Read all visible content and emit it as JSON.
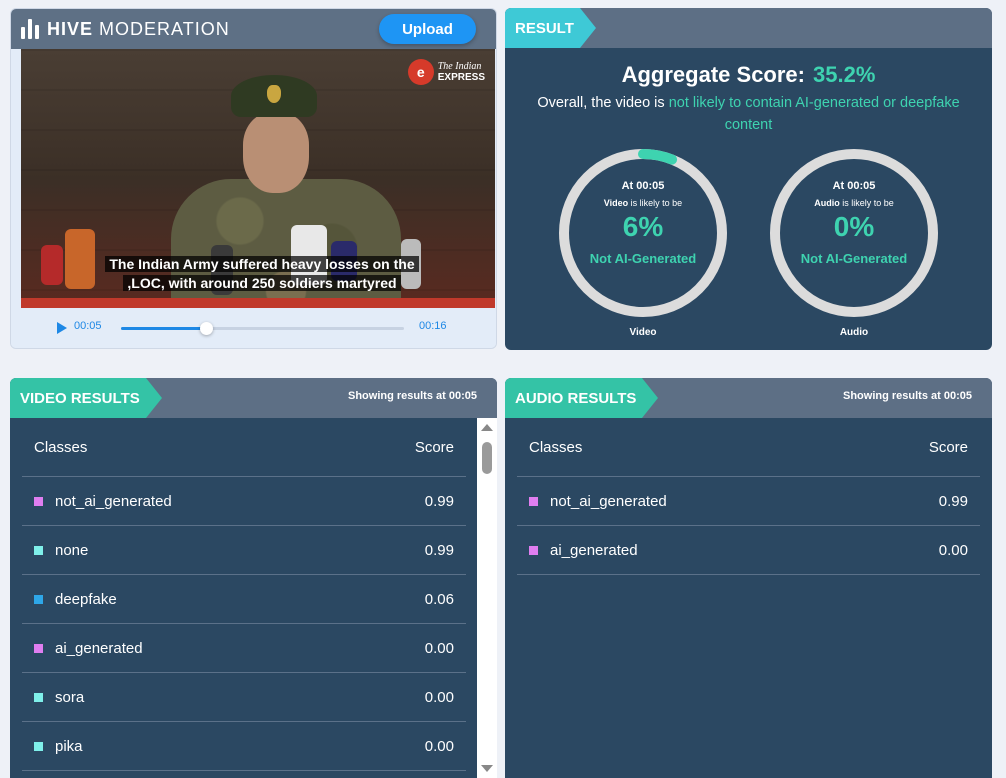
{
  "brand": {
    "name_bold": "HIVE",
    "name_light": "MODERATION",
    "upload_label": "Upload"
  },
  "player": {
    "channel_small": "The Indian",
    "channel_big": "EXPRESS",
    "caption_line1": "The Indian Army suffered heavy losses on the",
    "caption_line2": ",LOC, with around 250 soldiers martyred",
    "current_time": "00:05",
    "total_time": "00:16",
    "progress": 0.3
  },
  "result": {
    "tag": "RESULT",
    "aggregate_label": "Aggregate Score:",
    "aggregate_value": "35.2%",
    "verdict_prefix": "Overall, the video is",
    "verdict_highlight": "not likely to contain AI-generated or deepfake content",
    "gauges": [
      {
        "at": "At 00:05",
        "subject": "Video",
        "likely_suffix": "is likely to be",
        "percent": "6%",
        "fraction": 0.06,
        "label": "Not AI-Generated",
        "caption": "Video"
      },
      {
        "at": "At 00:05",
        "subject": "Audio",
        "likely_suffix": "is likely to be",
        "percent": "0%",
        "fraction": 0.0,
        "label": "Not AI-Generated",
        "caption": "Audio"
      }
    ],
    "colors": {
      "accent": "#3ed3b0",
      "ring": "#dcdcdc"
    }
  },
  "video_results": {
    "tag": "VIDEO RESULTS",
    "showing_prefix": "Showing results at",
    "showing_time": "00:05",
    "col_classes": "Classes",
    "col_score": "Score",
    "rows": [
      {
        "name": "not_ai_generated",
        "score": "0.99",
        "color": "#e07ef0"
      },
      {
        "name": "none",
        "score": "0.99",
        "color": "#7ff0ea"
      },
      {
        "name": "deepfake",
        "score": "0.06",
        "color": "#2ea7e8"
      },
      {
        "name": "ai_generated",
        "score": "0.00",
        "color": "#e07ef0"
      },
      {
        "name": "sora",
        "score": "0.00",
        "color": "#7ff0ea"
      },
      {
        "name": "pika",
        "score": "0.00",
        "color": "#7ff0ea"
      }
    ]
  },
  "audio_results": {
    "tag": "AUDIO RESULTS",
    "showing_prefix": "Showing results at",
    "showing_time": "00:05",
    "col_classes": "Classes",
    "col_score": "Score",
    "rows": [
      {
        "name": "not_ai_generated",
        "score": "0.99",
        "color": "#e07ef0"
      },
      {
        "name": "ai_generated",
        "score": "0.00",
        "color": "#e07ef0"
      }
    ]
  }
}
